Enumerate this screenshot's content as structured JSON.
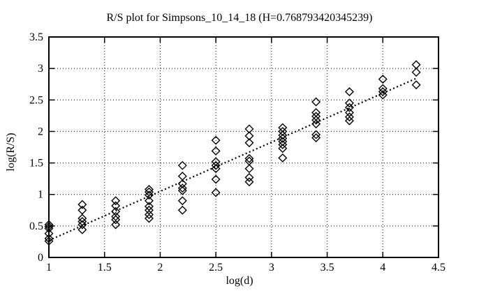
{
  "colors": {
    "foreground": "#000000",
    "background": "#ffffff"
  },
  "chart_data": {
    "type": "scatter",
    "title": "R/S plot for Simpsons_10_14_18 (H=0.768793420345239)",
    "xlabel": "log(d)",
    "ylabel": "log(R/S)",
    "hurst_exponent": 0.768793420345239,
    "xlim": [
      1,
      4.5
    ],
    "ylim": [
      0,
      3.5
    ],
    "xticks": [
      1,
      1.5,
      2,
      2.5,
      3,
      3.5,
      4,
      4.5
    ],
    "yticks": [
      0,
      0.5,
      1,
      1.5,
      2,
      2.5,
      3,
      3.5
    ],
    "grid": true,
    "legend": "none",
    "marker": "open-diamond",
    "marker_size": 11,
    "groups": [
      {
        "x": 1.0,
        "y": [
          0.52,
          0.49,
          0.46,
          0.38,
          0.3,
          0.26
        ]
      },
      {
        "x": 1.3,
        "y": [
          0.84,
          0.75,
          0.62,
          0.57,
          0.52,
          0.44
        ]
      },
      {
        "x": 1.6,
        "y": [
          0.9,
          0.82,
          0.73,
          0.65,
          0.6,
          0.52
        ]
      },
      {
        "x": 1.9,
        "y": [
          1.08,
          1.04,
          0.99,
          0.9,
          0.81,
          0.75,
          0.68,
          0.62
        ]
      },
      {
        "x": 2.2,
        "y": [
          1.46,
          1.29,
          1.17,
          1.1,
          1.06,
          0.9,
          0.75
        ]
      },
      {
        "x": 2.5,
        "y": [
          1.86,
          1.69,
          1.52,
          1.46,
          1.41,
          1.24,
          1.03
        ]
      },
      {
        "x": 2.8,
        "y": [
          2.04,
          1.93,
          1.82,
          1.57,
          1.53,
          1.41,
          1.27,
          1.2
        ]
      },
      {
        "x": 3.1,
        "y": [
          2.06,
          2.0,
          1.94,
          1.89,
          1.84,
          1.79,
          1.73,
          1.58
        ]
      },
      {
        "x": 3.4,
        "y": [
          2.47,
          2.3,
          2.24,
          2.18,
          2.12,
          1.95,
          1.9
        ]
      },
      {
        "x": 3.7,
        "y": [
          2.63,
          2.45,
          2.38,
          2.3,
          2.23,
          2.17
        ]
      },
      {
        "x": 4.0,
        "y": [
          2.83,
          2.68,
          2.63,
          2.58
        ]
      },
      {
        "x": 4.3,
        "y": [
          3.06,
          2.94,
          2.74
        ]
      }
    ],
    "trendline": {
      "style": "dotted",
      "x1": 1.0,
      "y1": 0.27,
      "x2": 4.31,
      "y2": 2.85
    }
  }
}
